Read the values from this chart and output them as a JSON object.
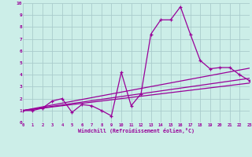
{
  "xlabel": "Windchill (Refroidissement éolien,°C)",
  "bg_color": "#cceee8",
  "grid_color": "#aacccc",
  "line_color": "#990099",
  "xlim": [
    0,
    23
  ],
  "ylim": [
    0,
    10
  ],
  "xticks": [
    0,
    1,
    2,
    3,
    4,
    5,
    6,
    7,
    8,
    9,
    10,
    11,
    12,
    13,
    14,
    15,
    16,
    17,
    18,
    19,
    20,
    21,
    22,
    23
  ],
  "yticks": [
    0,
    1,
    2,
    3,
    4,
    5,
    6,
    7,
    8,
    9,
    10
  ],
  "series1_x": [
    0,
    1,
    2,
    3,
    4,
    5,
    6,
    7,
    8,
    9,
    10,
    11,
    12,
    13,
    14,
    15,
    16,
    17,
    18,
    19,
    20,
    21,
    22,
    23
  ],
  "series1_y": [
    1.0,
    1.0,
    1.2,
    1.8,
    2.0,
    0.85,
    1.5,
    1.4,
    1.0,
    0.55,
    4.2,
    1.4,
    2.4,
    7.4,
    8.6,
    8.6,
    9.7,
    7.4,
    5.2,
    4.5,
    4.6,
    4.6,
    4.0,
    3.5
  ],
  "series2_x": [
    0,
    23
  ],
  "series2_y": [
    1.0,
    3.7
  ],
  "series3_x": [
    0,
    23
  ],
  "series3_y": [
    1.0,
    4.55
  ],
  "series4_x": [
    0,
    23
  ],
  "series4_y": [
    1.0,
    3.3
  ]
}
